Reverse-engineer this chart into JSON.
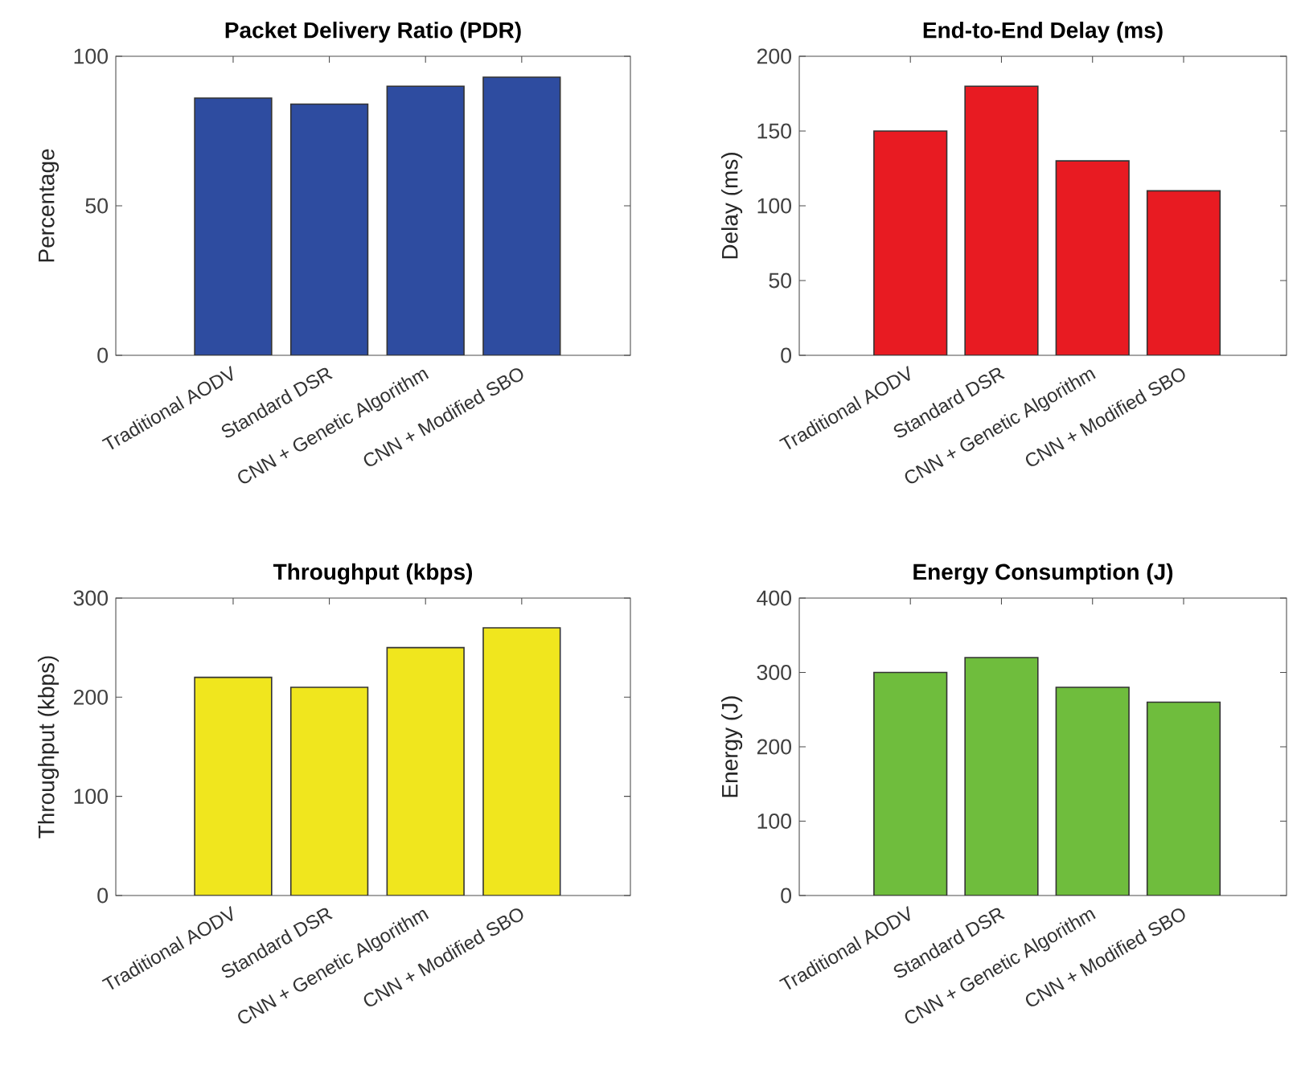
{
  "chart_data": [
    {
      "type": "bar",
      "title": "Packet Delivery Ratio (PDR)",
      "ylabel": "Percentage",
      "categories": [
        "Traditional AODV",
        "Standard DSR",
        "CNN + Genetic Algorithm",
        "CNN + Modified SBO"
      ],
      "values": [
        86,
        84,
        90,
        93
      ],
      "color": "#2e4ca0",
      "ylim": [
        0,
        100
      ],
      "yticks": [
        0,
        50,
        100
      ]
    },
    {
      "type": "bar",
      "title": "End-to-End Delay (ms)",
      "ylabel": "Delay (ms)",
      "categories": [
        "Traditional AODV",
        "Standard DSR",
        "CNN + Genetic Algorithm",
        "CNN + Modified SBO"
      ],
      "values": [
        150,
        180,
        130,
        110
      ],
      "color": "#e81b22",
      "ylim": [
        0,
        200
      ],
      "yticks": [
        0,
        50,
        100,
        150,
        200
      ]
    },
    {
      "type": "bar",
      "title": "Throughput (kbps)",
      "ylabel": "Throughput (kbps)",
      "categories": [
        "Traditional AODV",
        "Standard DSR",
        "CNN + Genetic Algorithm",
        "CNN + Modified SBO"
      ],
      "values": [
        220,
        210,
        250,
        270
      ],
      "color": "#f0e61e",
      "ylim": [
        0,
        300
      ],
      "yticks": [
        0,
        100,
        200,
        300
      ]
    },
    {
      "type": "bar",
      "title": "Energy Consumption (J)",
      "ylabel": "Energy (J)",
      "categories": [
        "Traditional AODV",
        "Standard DSR",
        "CNN + Genetic Algorithm",
        "CNN + Modified SBO"
      ],
      "values": [
        300,
        320,
        280,
        260
      ],
      "color": "#6fbd3d",
      "ylim": [
        0,
        400
      ],
      "yticks": [
        0,
        100,
        200,
        300,
        400
      ]
    }
  ]
}
